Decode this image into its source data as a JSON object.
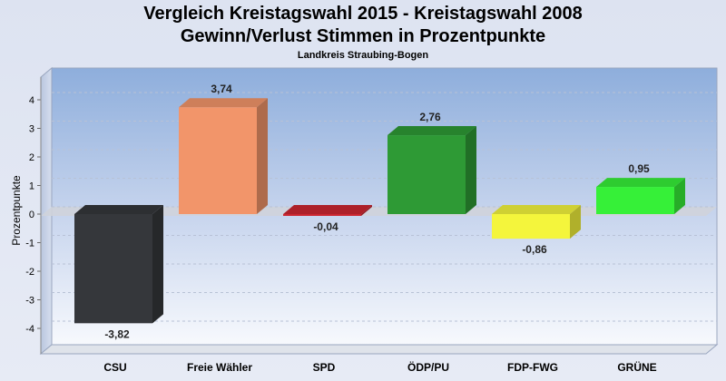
{
  "chart_data": {
    "type": "bar",
    "title": "Vergleich Kreistagswahl 2015 - Kreistagswahl 2008",
    "subtitle": "Gewinn/Verlust Stimmen in Prozentpunkte",
    "subtitle2": "Landkreis Straubing-Bogen",
    "ylabel": "Prozentpunkte",
    "xlabel": "",
    "ylim": [
      -4.5,
      4.5
    ],
    "yticks": [
      -4,
      -3,
      -2,
      -1,
      0,
      1,
      2,
      3,
      4
    ],
    "grid": true,
    "categories": [
      "CSU",
      "Freie Wähler",
      "SPD",
      "ÖDP/PU",
      "FDP-FWG",
      "GRÜNE"
    ],
    "values": [
      -3.82,
      3.74,
      -0.04,
      2.76,
      -0.86,
      0.95
    ],
    "value_labels": [
      "-3,82",
      "3,74",
      "-0,04",
      "2,76",
      "-0,86",
      "0,95"
    ],
    "colors": [
      "#35373b",
      "#f2956a",
      "#cc2630",
      "#2e9a35",
      "#f4f53c",
      "#36f038"
    ]
  }
}
